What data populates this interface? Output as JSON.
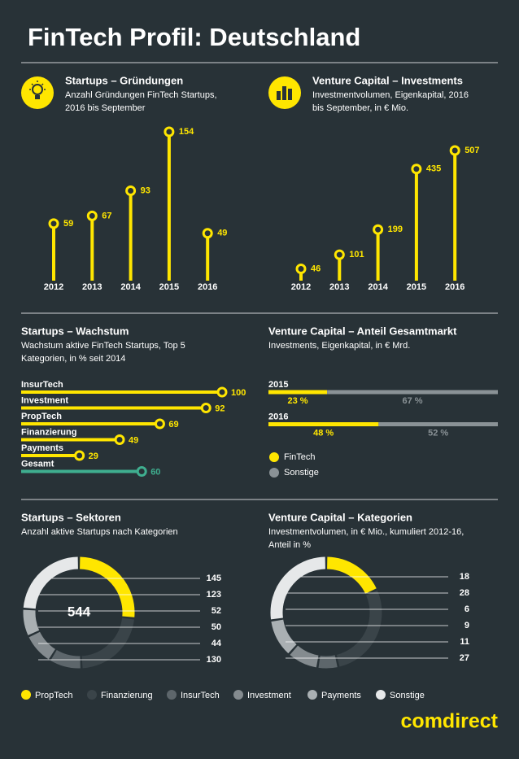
{
  "title": "FinTech Profil: Deutschland",
  "brand": "comdirect",
  "legend": {
    "names": [
      "PropTech",
      "Finanzierung",
      "InsurTech",
      "Investment",
      "Payments",
      "Sonstige"
    ],
    "colors": [
      "#ffe600",
      "#3a4449",
      "#5d666b",
      "#848b8f",
      "#aab0b3",
      "#e6e8e9"
    ]
  },
  "chart_data": [
    {
      "type": "lollipop",
      "title": "Startups – Gründungen",
      "subtitle": [
        "Anzahl Gründungen FinTech Startups,",
        "2016 bis September"
      ],
      "categories": [
        "2012",
        "2013",
        "2014",
        "2015",
        "2016"
      ],
      "values": [
        59,
        67,
        93,
        154,
        49
      ],
      "color": "#ffe600"
    },
    {
      "type": "lollipop",
      "title": "Venture Capital – Investments",
      "subtitle": [
        "Investmentvolumen, Eigenkapital, 2016",
        "bis September, in € Mio."
      ],
      "categories": [
        "2012",
        "2013",
        "2014",
        "2015",
        "2016"
      ],
      "values": [
        46,
        101,
        199,
        435,
        507
      ],
      "color": "#ffe600"
    },
    {
      "type": "hbar",
      "title": "Startups – Wachstum",
      "subtitle": [
        "Wachstum aktive FinTech Startups, Top 5",
        "Kategorien, in % seit 2014"
      ],
      "categories": [
        "InsurTech",
        "Investment",
        "PropTech",
        "Finanzierung",
        "Payments",
        "Gesamt"
      ],
      "values": [
        100,
        92,
        69,
        49,
        29,
        60
      ],
      "colors": [
        "#ffe600",
        "#ffe600",
        "#ffe600",
        "#ffe600",
        "#ffe600",
        "#3fae8f"
      ]
    },
    {
      "type": "stacked_hbar",
      "title": "Venture Capital – Anteil Gesamtmarkt",
      "subtitle": [
        "Investments, Eigenkapital, in € Mrd."
      ],
      "categories": [
        "2015",
        "2016"
      ],
      "series": [
        {
          "name": "FinTech",
          "color": "#ffe600",
          "values": [
            23,
            48
          ],
          "value_labels": [
            "23 %",
            "48 %"
          ]
        },
        {
          "name": "Sonstige",
          "color": "#8a9296",
          "values": [
            67,
            52
          ],
          "value_labels": [
            "67 %",
            "52 %"
          ]
        }
      ]
    },
    {
      "type": "donut",
      "title": "Startups – Sektoren",
      "subtitle": [
        "Anzahl aktive Startups nach Kategorien"
      ],
      "values": [
        145,
        123,
        52,
        50,
        44,
        130
      ],
      "total": 544
    },
    {
      "type": "donut",
      "title": "Venture Capital – Kategorien",
      "subtitle": [
        "Investmentvolumen, in € Mio., kumuliert 2012-16,",
        "Anteil in %"
      ],
      "values": [
        18,
        28,
        6,
        9,
        11,
        27
      ]
    }
  ]
}
